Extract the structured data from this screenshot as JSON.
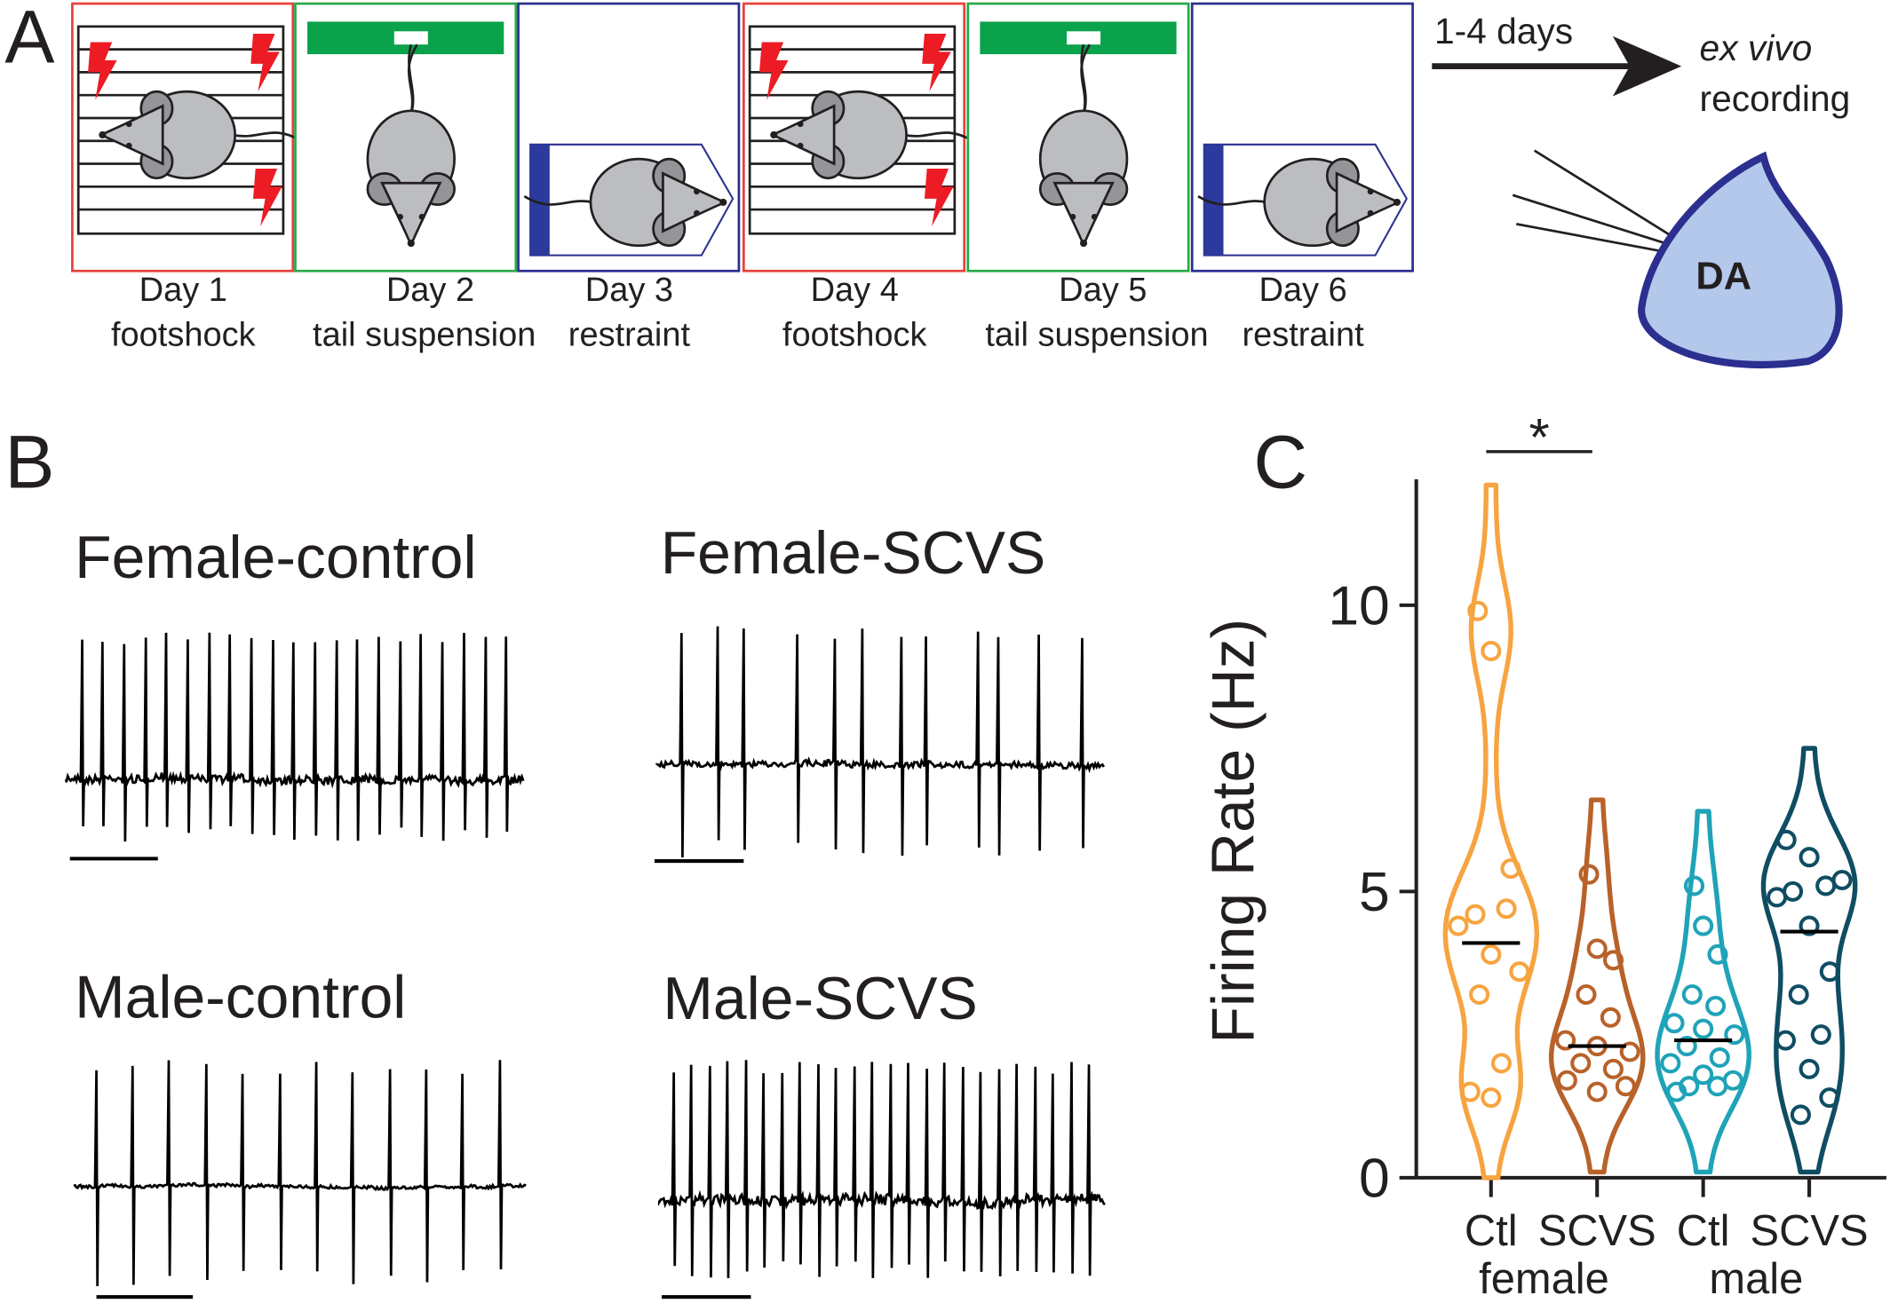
{
  "panel_a": {
    "label": "A",
    "days": [
      {
        "day": "Day 1",
        "stressor": "footshock"
      },
      {
        "day": "Day 2",
        "stressor": "tail suspension"
      },
      {
        "day": "Day 3",
        "stressor": "restraint"
      },
      {
        "day": "Day 4",
        "stressor": "footshock"
      },
      {
        "day": "Day 5",
        "stressor": "tail suspension"
      },
      {
        "day": "Day 6",
        "stressor": "restraint"
      }
    ],
    "arrow_label": "1-4 days",
    "destination": [
      "ex vivo",
      "recording"
    ],
    "neuron_label": "DA"
  },
  "panel_b": {
    "label": "B",
    "traces": [
      "Female-control",
      "Female-SCVS",
      "Male-control",
      "Male-SCVS"
    ]
  },
  "panel_c": {
    "label": "C"
  },
  "chart_data": {
    "type": "violin",
    "ylabel": "Firing Rate  (Hz)",
    "categories": [
      "Ctl",
      "SCVS",
      "Ctl",
      "SCVS"
    ],
    "groups": [
      "female",
      "male"
    ],
    "ylim": [
      0,
      12.2
    ],
    "yticks": [
      0,
      5,
      10
    ],
    "series": [
      {
        "color": "#f7a440",
        "min": 0,
        "max": 12.1,
        "median": 4.1,
        "values": [
          9.9,
          9.2,
          5.4,
          4.6,
          4.7,
          4.4,
          3.9,
          3.6,
          3.2,
          2.0,
          1.5,
          1.4
        ]
      },
      {
        "color": "#b8622a",
        "min": 0.1,
        "max": 6.6,
        "median": 2.3,
        "values": [
          5.3,
          4.0,
          3.8,
          3.2,
          2.8,
          2.4,
          2.3,
          2.2,
          2.0,
          1.9,
          1.7,
          1.5,
          1.6
        ]
      },
      {
        "color": "#1fa3b8",
        "min": 0.1,
        "max": 6.4,
        "median": 2.4,
        "values": [
          5.1,
          4.4,
          3.9,
          3.2,
          3.0,
          2.7,
          2.6,
          2.5,
          2.3,
          2.1,
          2.0,
          1.8,
          1.7,
          1.6,
          1.6,
          1.5
        ]
      },
      {
        "color": "#0f4d63",
        "min": 0.1,
        "max": 7.5,
        "median": 4.3,
        "values": [
          5.9,
          5.6,
          5.2,
          5.0,
          5.1,
          4.9,
          4.4,
          3.6,
          3.2,
          2.5,
          2.4,
          1.9,
          1.4,
          1.1
        ]
      }
    ],
    "annotations": [
      {
        "text": "*",
        "from": 0,
        "to": 1
      }
    ]
  }
}
